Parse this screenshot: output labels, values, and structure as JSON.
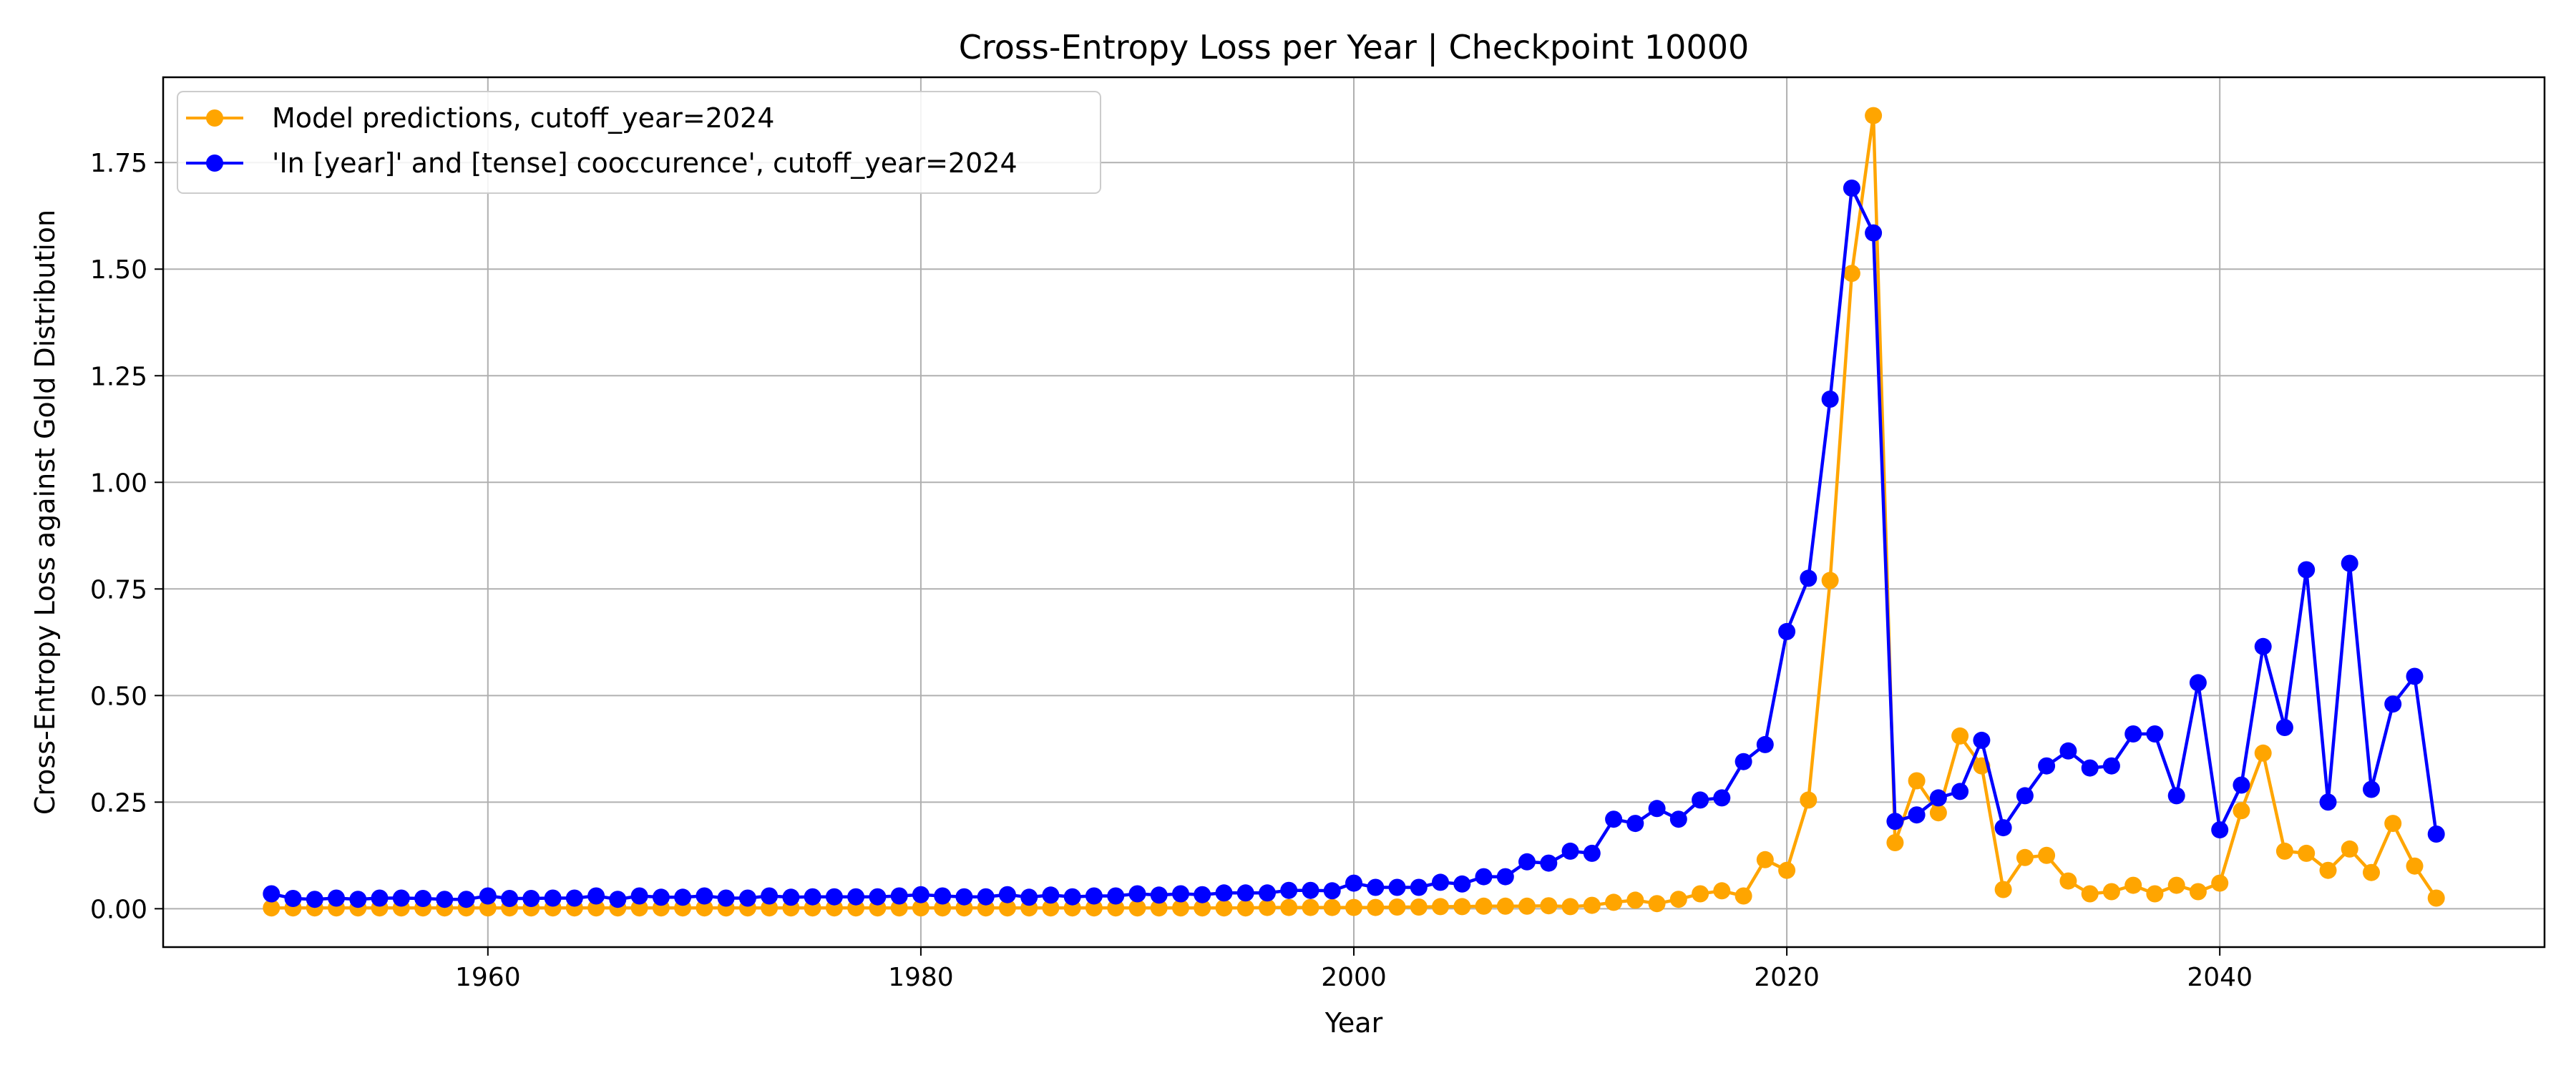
{
  "chart_data": {
    "type": "line",
    "title": "Cross-Entropy Loss per Year | Checkpoint 10000",
    "xlabel": "Year",
    "ylabel": "Cross-Entropy Loss against Gold Distribution",
    "xlim": [
      1945,
      2055
    ],
    "ylim": [
      -0.09,
      1.95
    ],
    "xticks": [
      1960,
      1980,
      2000,
      2020,
      2040
    ],
    "yticks": [
      0.0,
      0.25,
      0.5,
      0.75,
      1.0,
      1.25,
      1.5,
      1.75
    ],
    "ytick_labels": [
      "0.00",
      "0.25",
      "0.50",
      "0.75",
      "1.00",
      "1.25",
      "1.50",
      "1.75"
    ],
    "grid": true,
    "legend_position": "top-left",
    "x": [
      1950,
      1951,
      1952,
      1953,
      1954,
      1955,
      1956,
      1957,
      1958,
      1959,
      1960,
      1961,
      1962,
      1963,
      1964,
      1965,
      1966,
      1967,
      1968,
      1969,
      1970,
      1971,
      1972,
      1973,
      1974,
      1975,
      1976,
      1977,
      1978,
      1979,
      1980,
      1981,
      1982,
      1983,
      1984,
      1985,
      1986,
      1987,
      1988,
      1989,
      1990,
      1991,
      1992,
      1993,
      1994,
      1995,
      1996,
      1997,
      1998,
      1999,
      2000,
      2001,
      2002,
      2003,
      2004,
      2005,
      2006,
      2007,
      2008,
      2009,
      2010,
      2011,
      2012,
      2013,
      2014,
      2015,
      2016,
      2017,
      2018,
      2019,
      2020,
      2021,
      2022,
      2023,
      2024,
      2025,
      2026,
      2027,
      2028,
      2029,
      2030,
      2031,
      2032,
      2033,
      2034,
      2035,
      2036,
      2037,
      2038,
      2039,
      2040,
      2041,
      2042,
      2043,
      2044,
      2045,
      2046,
      2047,
      2048,
      2049,
      2050
    ],
    "series": [
      {
        "name": "Model predictions, cutoff_year=2024",
        "color": "#FFA500",
        "values": [
          0.002,
          0.002,
          0.002,
          0.002,
          0.002,
          0.002,
          0.002,
          0.002,
          0.002,
          0.002,
          0.002,
          0.002,
          0.002,
          0.002,
          0.002,
          0.002,
          0.002,
          0.002,
          0.002,
          0.002,
          0.002,
          0.002,
          0.002,
          0.002,
          0.002,
          0.002,
          0.002,
          0.002,
          0.002,
          0.002,
          0.002,
          0.002,
          0.002,
          0.002,
          0.002,
          0.002,
          0.002,
          0.002,
          0.002,
          0.002,
          0.002,
          0.002,
          0.002,
          0.002,
          0.002,
          0.002,
          0.003,
          0.003,
          0.003,
          0.003,
          0.003,
          0.003,
          0.004,
          0.004,
          0.005,
          0.005,
          0.006,
          0.006,
          0.006,
          0.007,
          0.005,
          0.008,
          0.015,
          0.02,
          0.012,
          0.022,
          0.035,
          0.042,
          0.03,
          0.115,
          0.09,
          0.255,
          0.77,
          1.49,
          1.86,
          0.155,
          0.3,
          0.225,
          0.405,
          0.335,
          0.045,
          0.12,
          0.125,
          0.065,
          0.035,
          0.04,
          0.055,
          0.035,
          0.055,
          0.04,
          0.06,
          0.23,
          0.365,
          0.135,
          0.13,
          0.09,
          0.14,
          0.085,
          0.2,
          0.1,
          0.025
        ]
      },
      {
        "name": "'In [year]' and [tense] cooccurence', cutoff_year=2024",
        "color": "#0000FF",
        "values": [
          0.035,
          0.024,
          0.022,
          0.025,
          0.022,
          0.025,
          0.025,
          0.024,
          0.022,
          0.022,
          0.03,
          0.024,
          0.024,
          0.025,
          0.025,
          0.03,
          0.022,
          0.03,
          0.027,
          0.027,
          0.03,
          0.025,
          0.025,
          0.03,
          0.027,
          0.028,
          0.028,
          0.028,
          0.028,
          0.03,
          0.033,
          0.03,
          0.028,
          0.028,
          0.033,
          0.027,
          0.032,
          0.028,
          0.03,
          0.03,
          0.035,
          0.032,
          0.035,
          0.033,
          0.037,
          0.037,
          0.037,
          0.043,
          0.043,
          0.042,
          0.06,
          0.05,
          0.05,
          0.05,
          0.062,
          0.058,
          0.075,
          0.075,
          0.11,
          0.107,
          0.135,
          0.13,
          0.21,
          0.2,
          0.235,
          0.21,
          0.255,
          0.26,
          0.345,
          0.385,
          0.65,
          0.775,
          1.195,
          1.69,
          1.585,
          0.205,
          0.22,
          0.26,
          0.275,
          0.395,
          0.19,
          0.265,
          0.335,
          0.37,
          0.33,
          0.335,
          0.41,
          0.41,
          0.265,
          0.53,
          0.185,
          0.29,
          0.615,
          0.425,
          0.795,
          0.25,
          0.81,
          0.28,
          0.48,
          0.545,
          0.175
        ]
      }
    ]
  }
}
